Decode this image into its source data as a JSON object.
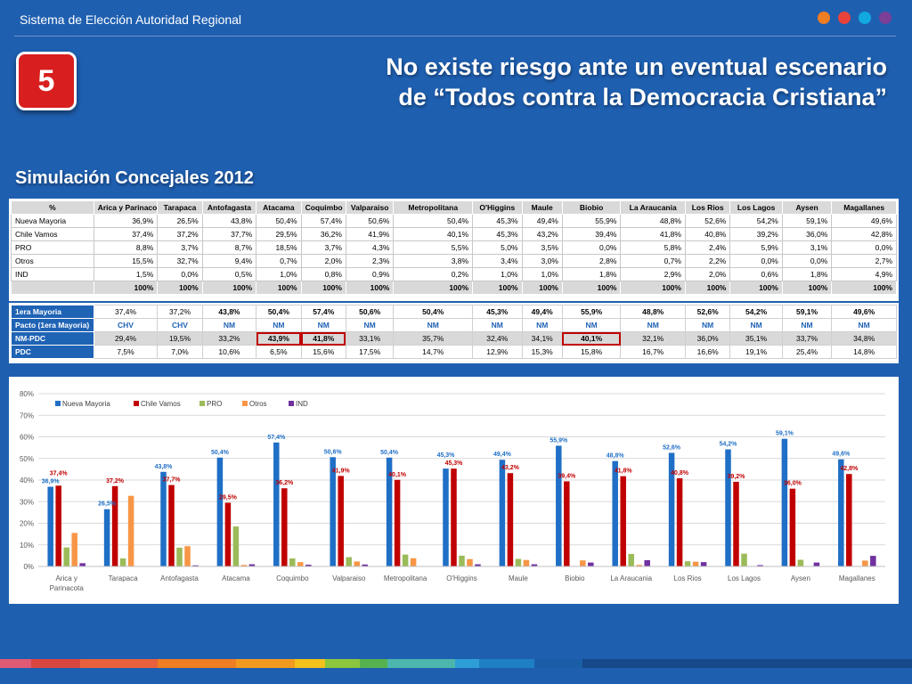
{
  "header": {
    "title": "Sistema de Elección Autoridad Regional",
    "dots": [
      "#ef7d22",
      "#e8423b",
      "#12a9e0",
      "#7b3f98"
    ]
  },
  "slide_number": "5",
  "headline": {
    "line1": "No existe riesgo ante un eventual escenario",
    "line2": "de “Todos contra la Democracia Cristiana”"
  },
  "subtitle": "Simulación Concejales 2012",
  "regions": [
    "Arica y Parinacota",
    "Tarapaca",
    "Antofagasta",
    "Atacama",
    "Coquimbo",
    "Valparaiso",
    "Metropolitana",
    "O'Higgins",
    "Maule",
    "Biobio",
    "La Araucania",
    "Los Rios",
    "Los Lagos",
    "Aysen",
    "Magallanes"
  ],
  "table1": {
    "corner": "%",
    "rows": [
      {
        "label": "Nueva Mayoria",
        "values": [
          "36,9%",
          "26,5%",
          "43,8%",
          "50,4%",
          "57,4%",
          "50,6%",
          "50,4%",
          "45,3%",
          "49,4%",
          "55,9%",
          "48,8%",
          "52,6%",
          "54,2%",
          "59,1%",
          "49,6%"
        ]
      },
      {
        "label": "Chile Vamos",
        "values": [
          "37,4%",
          "37,2%",
          "37,7%",
          "29,5%",
          "36,2%",
          "41,9%",
          "40,1%",
          "45,3%",
          "43,2%",
          "39,4%",
          "41,8%",
          "40,8%",
          "39,2%",
          "36,0%",
          "42,8%"
        ]
      },
      {
        "label": "PRO",
        "values": [
          "8,8%",
          "3,7%",
          "8,7%",
          "18,5%",
          "3,7%",
          "4,3%",
          "5,5%",
          "5,0%",
          "3,5%",
          "0,0%",
          "5,8%",
          "2,4%",
          "5,9%",
          "3,1%",
          "0,0%"
        ]
      },
      {
        "label": "Otros",
        "values": [
          "15,5%",
          "32,7%",
          "9,4%",
          "0,7%",
          "2,0%",
          "2,3%",
          "3,8%",
          "3,4%",
          "3,0%",
          "2,8%",
          "0,7%",
          "2,2%",
          "0,0%",
          "0,0%",
          "2,7%"
        ]
      },
      {
        "label": "IND",
        "values": [
          "1,5%",
          "0,0%",
          "0,5%",
          "1,0%",
          "0,8%",
          "0,9%",
          "0,2%",
          "1,0%",
          "1,0%",
          "1,8%",
          "2,9%",
          "2,0%",
          "0,6%",
          "1,8%",
          "4,9%"
        ]
      }
    ],
    "totals": [
      "100%",
      "100%",
      "100%",
      "100%",
      "100%",
      "100%",
      "100%",
      "100%",
      "100%",
      "100%",
      "100%",
      "100%",
      "100%",
      "100%",
      "100%"
    ]
  },
  "table2": {
    "rows": [
      {
        "label": "1era Mayoria",
        "values": [
          "37,4%",
          "37,2%",
          "43,8%",
          "50,4%",
          "57,4%",
          "50,6%",
          "50,4%",
          "45,3%",
          "49,4%",
          "55,9%",
          "48,8%",
          "52,6%",
          "54,2%",
          "59,1%",
          "49,6%"
        ]
      },
      {
        "label": "Pacto (1era Mayoria)",
        "values": [
          "CHV",
          "CHV",
          "NM",
          "NM",
          "NM",
          "NM",
          "NM",
          "NM",
          "NM",
          "NM",
          "NM",
          "NM",
          "NM",
          "NM",
          "NM"
        ]
      },
      {
        "label": "NM-PDC",
        "values": [
          "29,4%",
          "19,5%",
          "33,2%",
          "43,9%",
          "41,8%",
          "33,1%",
          "35,7%",
          "32,4%",
          "34,1%",
          "40,1%",
          "32,1%",
          "36,0%",
          "35,1%",
          "33,7%",
          "34,8%"
        ]
      },
      {
        "label": "PDC",
        "values": [
          "7,5%",
          "7,0%",
          "10,6%",
          "6,5%",
          "15,6%",
          "17,5%",
          "14,7%",
          "12,9%",
          "15,3%",
          "15,8%",
          "16,7%",
          "16,6%",
          "19,1%",
          "25,4%",
          "14,8%"
        ]
      }
    ]
  },
  "chart_data": {
    "type": "bar",
    "categories": [
      "Arica y Parinacota",
      "Tarapaca",
      "Antofagasta",
      "Atacama",
      "Coquimbo",
      "Valparaiso",
      "Metropolitana",
      "O'Higgins",
      "Maule",
      "Biobio",
      "La Araucania",
      "Los Rios",
      "Los Lagos",
      "Aysen",
      "Magallanes"
    ],
    "category_labels": [
      [
        "Arica y",
        "Parinacota"
      ],
      [
        "Tarapaca"
      ],
      [
        "Antofagasta"
      ],
      [
        "Atacama"
      ],
      [
        "Coquimbo"
      ],
      [
        "Valparaiso"
      ],
      [
        "Metropolitana"
      ],
      [
        "O'Higgins"
      ],
      [
        "Maule"
      ],
      [
        "Biobio"
      ],
      [
        "La Araucania"
      ],
      [
        "Los Rios"
      ],
      [
        "Los Lagos"
      ],
      [
        "Aysen"
      ],
      [
        "Magallanes"
      ]
    ],
    "series": [
      {
        "name": "Nueva Mayoria",
        "color": "#1f6fc6",
        "values": [
          36.9,
          26.5,
          43.8,
          50.4,
          57.4,
          50.6,
          50.4,
          45.3,
          49.4,
          55.9,
          48.8,
          52.6,
          54.2,
          59.1,
          49.6
        ],
        "labels": [
          "36,9%",
          "26,5%",
          "43,8%",
          "50,4%",
          "57,4%",
          "50,6%",
          "50,4%",
          "45,3%",
          "49,4%",
          "55,9%",
          "48,8%",
          "52,6%",
          "54,2%",
          "59,1%",
          "49,6%"
        ]
      },
      {
        "name": "Chile Vamos",
        "color": "#c00000",
        "values": [
          37.4,
          37.2,
          37.7,
          29.5,
          36.2,
          41.9,
          40.1,
          45.3,
          43.2,
          39.4,
          41.8,
          40.8,
          39.2,
          36.0,
          42.8
        ],
        "labels": [
          "37,4%",
          "37,2%",
          "37,7%",
          "29,5%",
          "36,2%",
          "41,9%",
          "40,1%",
          "45,3%",
          "43,2%",
          "39,4%",
          "41,8%",
          "40,8%",
          "39,2%",
          "36,0%",
          "42,8%"
        ]
      },
      {
        "name": "PRO",
        "color": "#9bbb59",
        "values": [
          8.8,
          3.7,
          8.7,
          18.5,
          3.7,
          4.3,
          5.5,
          5.0,
          3.5,
          0.0,
          5.8,
          2.4,
          5.9,
          3.1,
          0.0
        ]
      },
      {
        "name": "Otros",
        "color": "#f79646",
        "values": [
          15.5,
          32.7,
          9.4,
          0.7,
          2.0,
          2.3,
          3.8,
          3.4,
          3.0,
          2.8,
          0.7,
          2.2,
          0.0,
          0.0,
          2.7
        ]
      },
      {
        "name": "IND",
        "color": "#7030a0",
        "values": [
          1.5,
          0.0,
          0.5,
          1.0,
          0.8,
          0.9,
          0.2,
          1.0,
          1.0,
          1.8,
          2.9,
          2.0,
          0.6,
          1.8,
          4.9
        ]
      }
    ],
    "yticks": [
      "0%",
      "10%",
      "20%",
      "30%",
      "40%",
      "50%",
      "60%",
      "70%",
      "80%"
    ],
    "ylim": [
      0,
      80
    ],
    "grid": true,
    "legend": "top-left"
  },
  "footer_colors": [
    "#e05a74",
    "#d9453f",
    "#e8603c",
    "#ef7d22",
    "#f29a1f",
    "#f2c11b",
    "#8cc63f",
    "#56b14f",
    "#4db6ac",
    "#2e9ed6",
    "#1f7fc3",
    "#1a5ea8",
    "#16488a"
  ]
}
